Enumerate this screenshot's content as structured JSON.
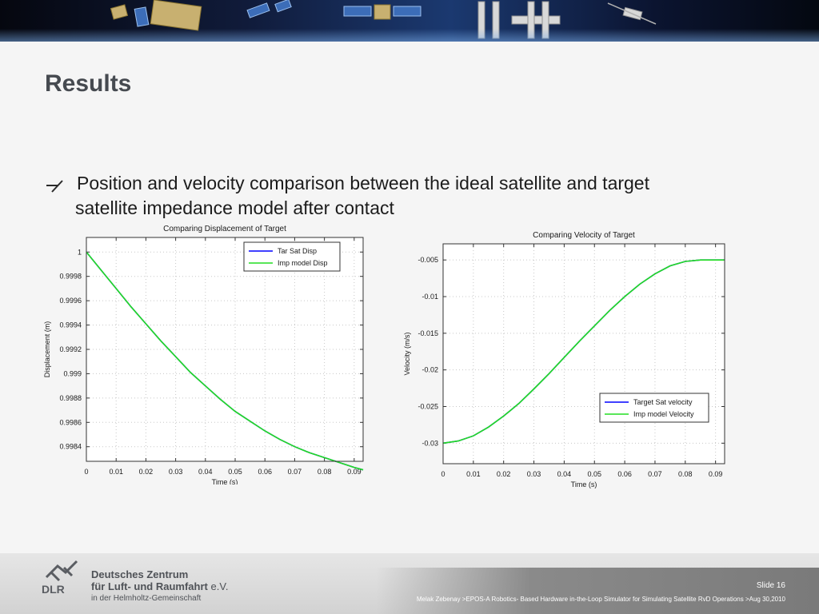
{
  "slide": {
    "title": "Results",
    "bullet_line1": "Position and velocity comparison between the ideal satellite and target",
    "bullet_line2": "satellite impedance model after contact",
    "number": "Slide 16",
    "footer_citation": "Melak Zebenay >EPOS-A Robotics- Based Hardware in-the-Loop Simulator for Simulating Satellite RvD Operations >Aug 30,2010"
  },
  "branding": {
    "logo_word": "DLR",
    "org_line1": "Deutsches Zentrum",
    "org_line2_main": "für Luft- und Raumfahrt",
    "org_line2_suffix": "e.V.",
    "org_line3": "in der Helmholtz-Gemeinschaft"
  },
  "icons": {
    "bullet": "arrow-right-up-icon",
    "logo": "dlr-logo-icon"
  },
  "colors": {
    "series_tar": "#0000ff",
    "series_imp": "#22dd22",
    "title_text": "#464a50"
  },
  "chart_data": [
    {
      "type": "line",
      "title": "Comparing Displacement of Target",
      "xlabel": "Time  (s)",
      "ylabel": "Displacement (m)",
      "xlim": [
        0,
        0.093
      ],
      "ylim": [
        0.99828,
        1.00012
      ],
      "xticks": [
        0,
        0.01,
        0.02,
        0.03,
        0.04,
        0.05,
        0.06,
        0.07,
        0.08,
        0.09
      ],
      "yticks": [
        0.9984,
        0.9986,
        0.9988,
        0.999,
        0.9992,
        0.9994,
        0.9996,
        0.9998,
        1
      ],
      "legend_position": "top-right",
      "grid": true,
      "series": [
        {
          "name": "Tar Sat Disp",
          "color": "#0000ff",
          "x": [
            0,
            0.005,
            0.01,
            0.015,
            0.02,
            0.025,
            0.03,
            0.035,
            0.04,
            0.045,
            0.05,
            0.055,
            0.06,
            0.065,
            0.07,
            0.075,
            0.08,
            0.085,
            0.09,
            0.093
          ],
          "y": [
            1,
            0.99985,
            0.9997,
            0.99955,
            0.99941,
            0.99927,
            0.99914,
            0.99901,
            0.9989,
            0.99879,
            0.99869,
            0.99861,
            0.99853,
            0.99846,
            0.9984,
            0.99835,
            0.99831,
            0.99827,
            0.99823,
            0.99821
          ]
        },
        {
          "name": "Imp model Disp",
          "color": "#22dd22",
          "x": [
            0,
            0.005,
            0.01,
            0.015,
            0.02,
            0.025,
            0.03,
            0.035,
            0.04,
            0.045,
            0.05,
            0.055,
            0.06,
            0.065,
            0.07,
            0.075,
            0.08,
            0.085,
            0.09,
            0.093
          ],
          "y": [
            1,
            0.99985,
            0.9997,
            0.99955,
            0.99941,
            0.99927,
            0.99914,
            0.99901,
            0.9989,
            0.99879,
            0.99869,
            0.99861,
            0.99853,
            0.99846,
            0.9984,
            0.99835,
            0.99831,
            0.99827,
            0.99823,
            0.99821
          ]
        }
      ]
    },
    {
      "type": "line",
      "title": "Comparing Velocity of Target",
      "xlabel": "Time  (s)",
      "ylabel": "Velocity (m/s)",
      "xlim": [
        0,
        0.093
      ],
      "ylim": [
        -0.0328,
        -0.0028
      ],
      "xticks": [
        0,
        0.01,
        0.02,
        0.03,
        0.04,
        0.05,
        0.06,
        0.07,
        0.08,
        0.09
      ],
      "yticks": [
        -0.03,
        -0.025,
        -0.02,
        -0.015,
        -0.01,
        -0.005
      ],
      "legend_position": "bottom-right",
      "grid": true,
      "series": [
        {
          "name": "Target Sat velocity",
          "color": "#0000ff",
          "x": [
            0,
            0.005,
            0.01,
            0.015,
            0.02,
            0.025,
            0.03,
            0.035,
            0.04,
            0.045,
            0.05,
            0.055,
            0.06,
            0.065,
            0.07,
            0.075,
            0.08,
            0.085,
            0.09,
            0.093
          ],
          "y": [
            -0.03,
            -0.0297,
            -0.029,
            -0.0278,
            -0.0263,
            -0.0246,
            -0.0226,
            -0.0205,
            -0.0183,
            -0.0161,
            -0.014,
            -0.0119,
            -0.01,
            -0.0083,
            -0.0069,
            -0.0058,
            -0.0052,
            -0.005,
            -0.005,
            -0.005
          ]
        },
        {
          "name": "Imp model Velocity",
          "color": "#22dd22",
          "x": [
            0,
            0.005,
            0.01,
            0.015,
            0.02,
            0.025,
            0.03,
            0.035,
            0.04,
            0.045,
            0.05,
            0.055,
            0.06,
            0.065,
            0.07,
            0.075,
            0.08,
            0.085,
            0.09,
            0.093
          ],
          "y": [
            -0.03,
            -0.0297,
            -0.029,
            -0.0278,
            -0.0263,
            -0.0246,
            -0.0226,
            -0.0205,
            -0.0183,
            -0.0161,
            -0.014,
            -0.0119,
            -0.01,
            -0.0083,
            -0.0069,
            -0.0058,
            -0.0052,
            -0.005,
            -0.005,
            -0.005
          ]
        }
      ]
    }
  ]
}
